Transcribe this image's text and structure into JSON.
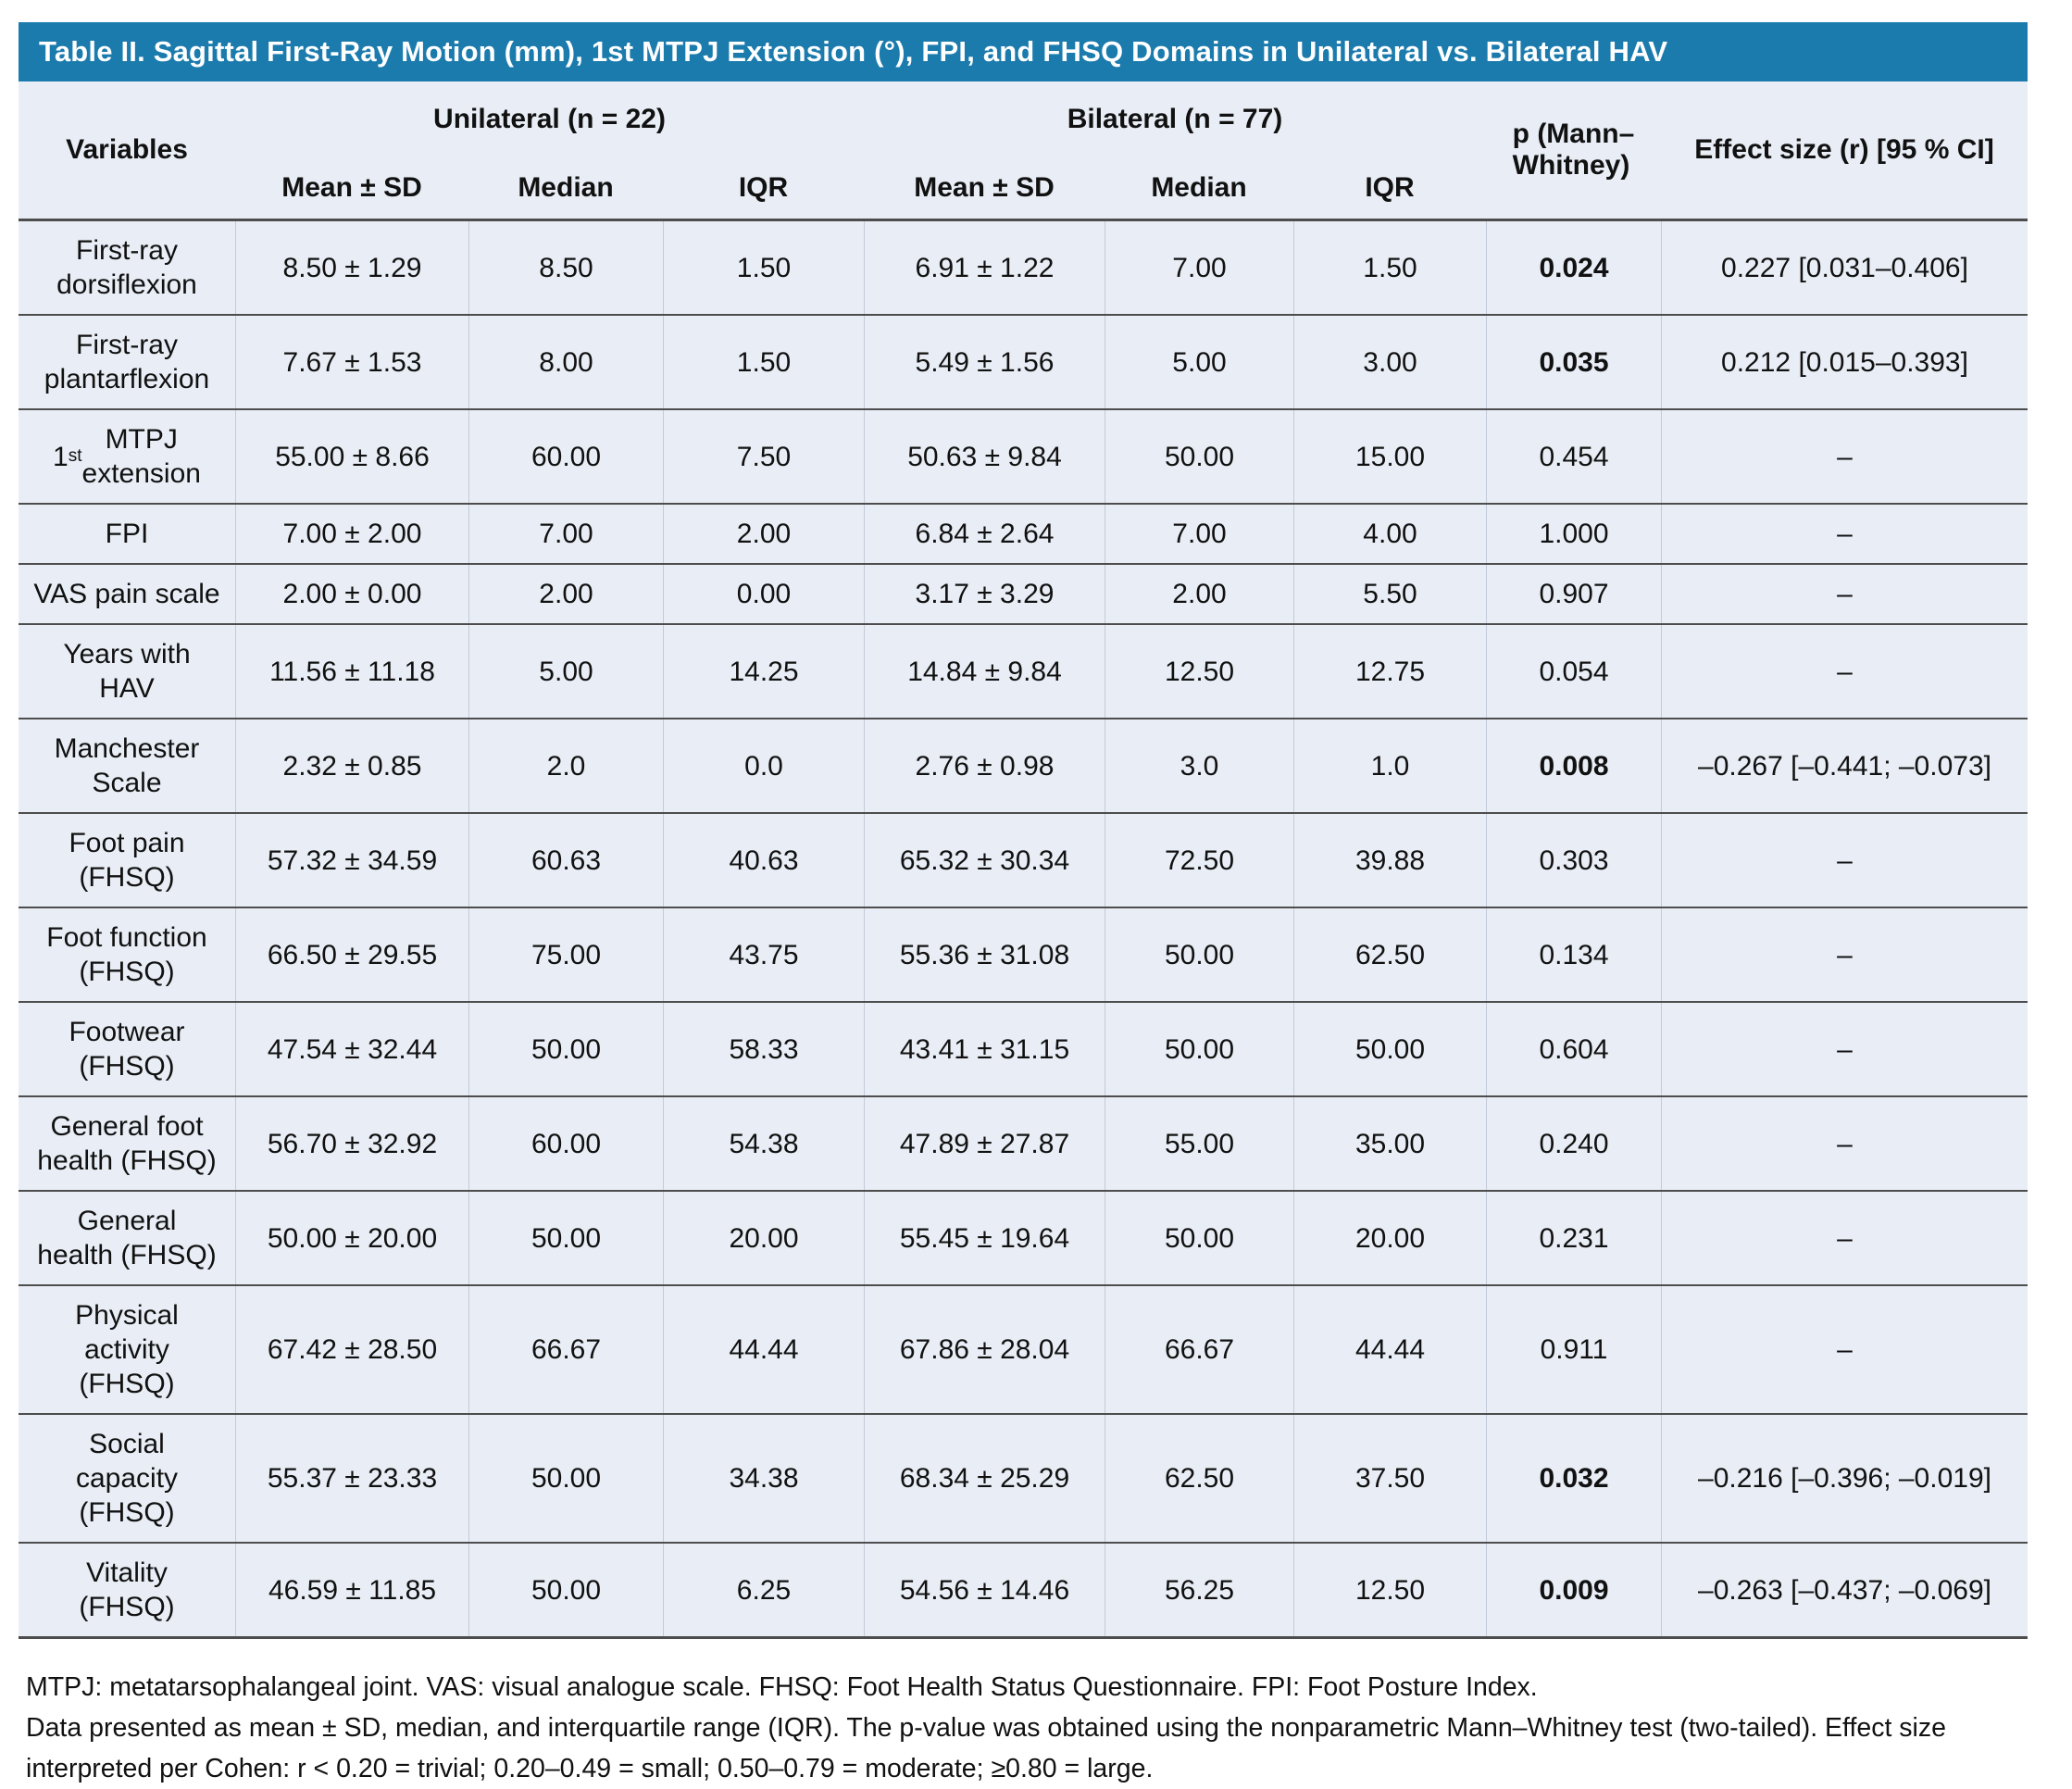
{
  "colors": {
    "header_bg": "#1b7bad",
    "body_bg": "#e9eef6",
    "row_line": "#4d4d4d",
    "col_line": "#c3cbd8",
    "title_text": "#ffffff"
  },
  "title": "Table II. Sagittal First-Ray Motion (mm), 1st MTPJ Extension (°), FPI, and FHSQ Domains in Unilateral vs. Bilateral HAV",
  "header": {
    "variables": "Variables",
    "group_unilateral": "Unilateral (n = 22)",
    "group_bilateral": "Bilateral (n = 77)",
    "sub": [
      "Mean ± SD",
      "Median",
      "IQR"
    ],
    "p": "p (Mann–\nWhitney)",
    "effect": "Effect size (r) [95 % CI]"
  },
  "rows": [
    {
      "variable": "First-ray\ndorsiflexion",
      "uni_mean_sd": "8.50 ± 1.29",
      "uni_median": "8.50",
      "uni_iqr": "1.50",
      "bi_mean_sd": "6.91 ± 1.22",
      "bi_median": "7.00",
      "bi_iqr": "1.50",
      "p": "0.024",
      "p_bold": true,
      "effect": "0.227 [0.031–0.406]"
    },
    {
      "variable": "First-ray\nplantarflexion",
      "uni_mean_sd": "7.67 ± 1.53",
      "uni_median": "8.00",
      "uni_iqr": "1.50",
      "bi_mean_sd": "5.49 ± 1.56",
      "bi_median": "5.00",
      "bi_iqr": "3.00",
      "p": "0.035",
      "p_bold": true,
      "effect": "0.212 [0.015–0.393]"
    },
    {
      "variable": "1st MTPJ\nextension",
      "sup": "st",
      "uni_mean_sd": "55.00 ± 8.66",
      "uni_median": "60.00",
      "uni_iqr": "7.50",
      "bi_mean_sd": "50.63 ± 9.84",
      "bi_median": "50.00",
      "bi_iqr": "15.00",
      "p": "0.454",
      "p_bold": false,
      "effect": "–"
    },
    {
      "variable": "FPI",
      "uni_mean_sd": "7.00 ± 2.00",
      "uni_median": "7.00",
      "uni_iqr": "2.00",
      "bi_mean_sd": "6.84 ± 2.64",
      "bi_median": "7.00",
      "bi_iqr": "4.00",
      "p": "1.000",
      "p_bold": false,
      "effect": "–"
    },
    {
      "variable": "VAS pain scale",
      "uni_mean_sd": "2.00 ± 0.00",
      "uni_median": "2.00",
      "uni_iqr": "0.00",
      "bi_mean_sd": "3.17 ± 3.29",
      "bi_median": "2.00",
      "bi_iqr": "5.50",
      "p": "0.907",
      "p_bold": false,
      "effect": "–"
    },
    {
      "variable": "Years with\nHAV",
      "uni_mean_sd": "11.56 ± 11.18",
      "uni_median": "5.00",
      "uni_iqr": "14.25",
      "bi_mean_sd": "14.84 ± 9.84",
      "bi_median": "12.50",
      "bi_iqr": "12.75",
      "p": "0.054",
      "p_bold": false,
      "effect": "–"
    },
    {
      "variable": "Manchester\nScale",
      "uni_mean_sd": "2.32 ± 0.85",
      "uni_median": "2.0",
      "uni_iqr": "0.0",
      "bi_mean_sd": "2.76 ± 0.98",
      "bi_median": "3.0",
      "bi_iqr": "1.0",
      "p": "0.008",
      "p_bold": true,
      "effect": "–0.267 [–0.441; –0.073]"
    },
    {
      "variable": "Foot pain\n(FHSQ)",
      "uni_mean_sd": "57.32 ± 34.59",
      "uni_median": "60.63",
      "uni_iqr": "40.63",
      "bi_mean_sd": "65.32 ± 30.34",
      "bi_median": "72.50",
      "bi_iqr": "39.88",
      "p": "0.303",
      "p_bold": false,
      "effect": "–"
    },
    {
      "variable": "Foot function\n(FHSQ)",
      "uni_mean_sd": "66.50 ± 29.55",
      "uni_median": "75.00",
      "uni_iqr": "43.75",
      "bi_mean_sd": "55.36 ± 31.08",
      "bi_median": "50.00",
      "bi_iqr": "62.50",
      "p": "0.134",
      "p_bold": false,
      "effect": "–"
    },
    {
      "variable": "Footwear\n(FHSQ)",
      "uni_mean_sd": "47.54 ± 32.44",
      "uni_median": "50.00",
      "uni_iqr": "58.33",
      "bi_mean_sd": "43.41 ± 31.15",
      "bi_median": "50.00",
      "bi_iqr": "50.00",
      "p": "0.604",
      "p_bold": false,
      "effect": "–"
    },
    {
      "variable": "General foot\nhealth (FHSQ)",
      "uni_mean_sd": "56.70 ± 32.92",
      "uni_median": "60.00",
      "uni_iqr": "54.38",
      "bi_mean_sd": "47.89 ± 27.87",
      "bi_median": "55.00",
      "bi_iqr": "35.00",
      "p": "0.240",
      "p_bold": false,
      "effect": "–"
    },
    {
      "variable": "General\nhealth (FHSQ)",
      "uni_mean_sd": "50.00 ± 20.00",
      "uni_median": "50.00",
      "uni_iqr": "20.00",
      "bi_mean_sd": "55.45 ± 19.64",
      "bi_median": "50.00",
      "bi_iqr": "20.00",
      "p": "0.231",
      "p_bold": false,
      "effect": "–"
    },
    {
      "variable": "Physical\nactivity\n(FHSQ)",
      "uni_mean_sd": "67.42 ± 28.50",
      "uni_median": "66.67",
      "uni_iqr": "44.44",
      "bi_mean_sd": "67.86 ± 28.04",
      "bi_median": "66.67",
      "bi_iqr": "44.44",
      "p": "0.911",
      "p_bold": false,
      "effect": "–"
    },
    {
      "variable": "Social\ncapacity\n(FHSQ)",
      "uni_mean_sd": "55.37 ± 23.33",
      "uni_median": "50.00",
      "uni_iqr": "34.38",
      "bi_mean_sd": "68.34 ± 25.29",
      "bi_median": "62.50",
      "bi_iqr": "37.50",
      "p": "0.032",
      "p_bold": true,
      "effect": "–0.216 [–0.396; –0.019]"
    },
    {
      "variable": "Vitality\n(FHSQ)",
      "uni_mean_sd": "46.59 ± 11.85",
      "uni_median": "50.00",
      "uni_iqr": "6.25",
      "bi_mean_sd": "54.56 ± 14.46",
      "bi_median": "56.25",
      "bi_iqr": "12.50",
      "p": "0.009",
      "p_bold": true,
      "effect": "–0.263 [–0.437; –0.069]"
    }
  ],
  "footnotes": [
    "MTPJ: metatarsophalangeal joint. VAS: visual analogue scale. FHSQ: Foot Health Status Questionnaire. FPI: Foot Posture Index.",
    "Data presented as mean ± SD, median, and interquartile range (IQR). The p-value was obtained using the nonparametric Mann–Whitney test (two-tailed). Effect size interpreted per Cohen: r < 0.20 = trivial; 0.20–0.49 = small; 0.50–0.79 = moderate; ≥0.80 = large."
  ]
}
